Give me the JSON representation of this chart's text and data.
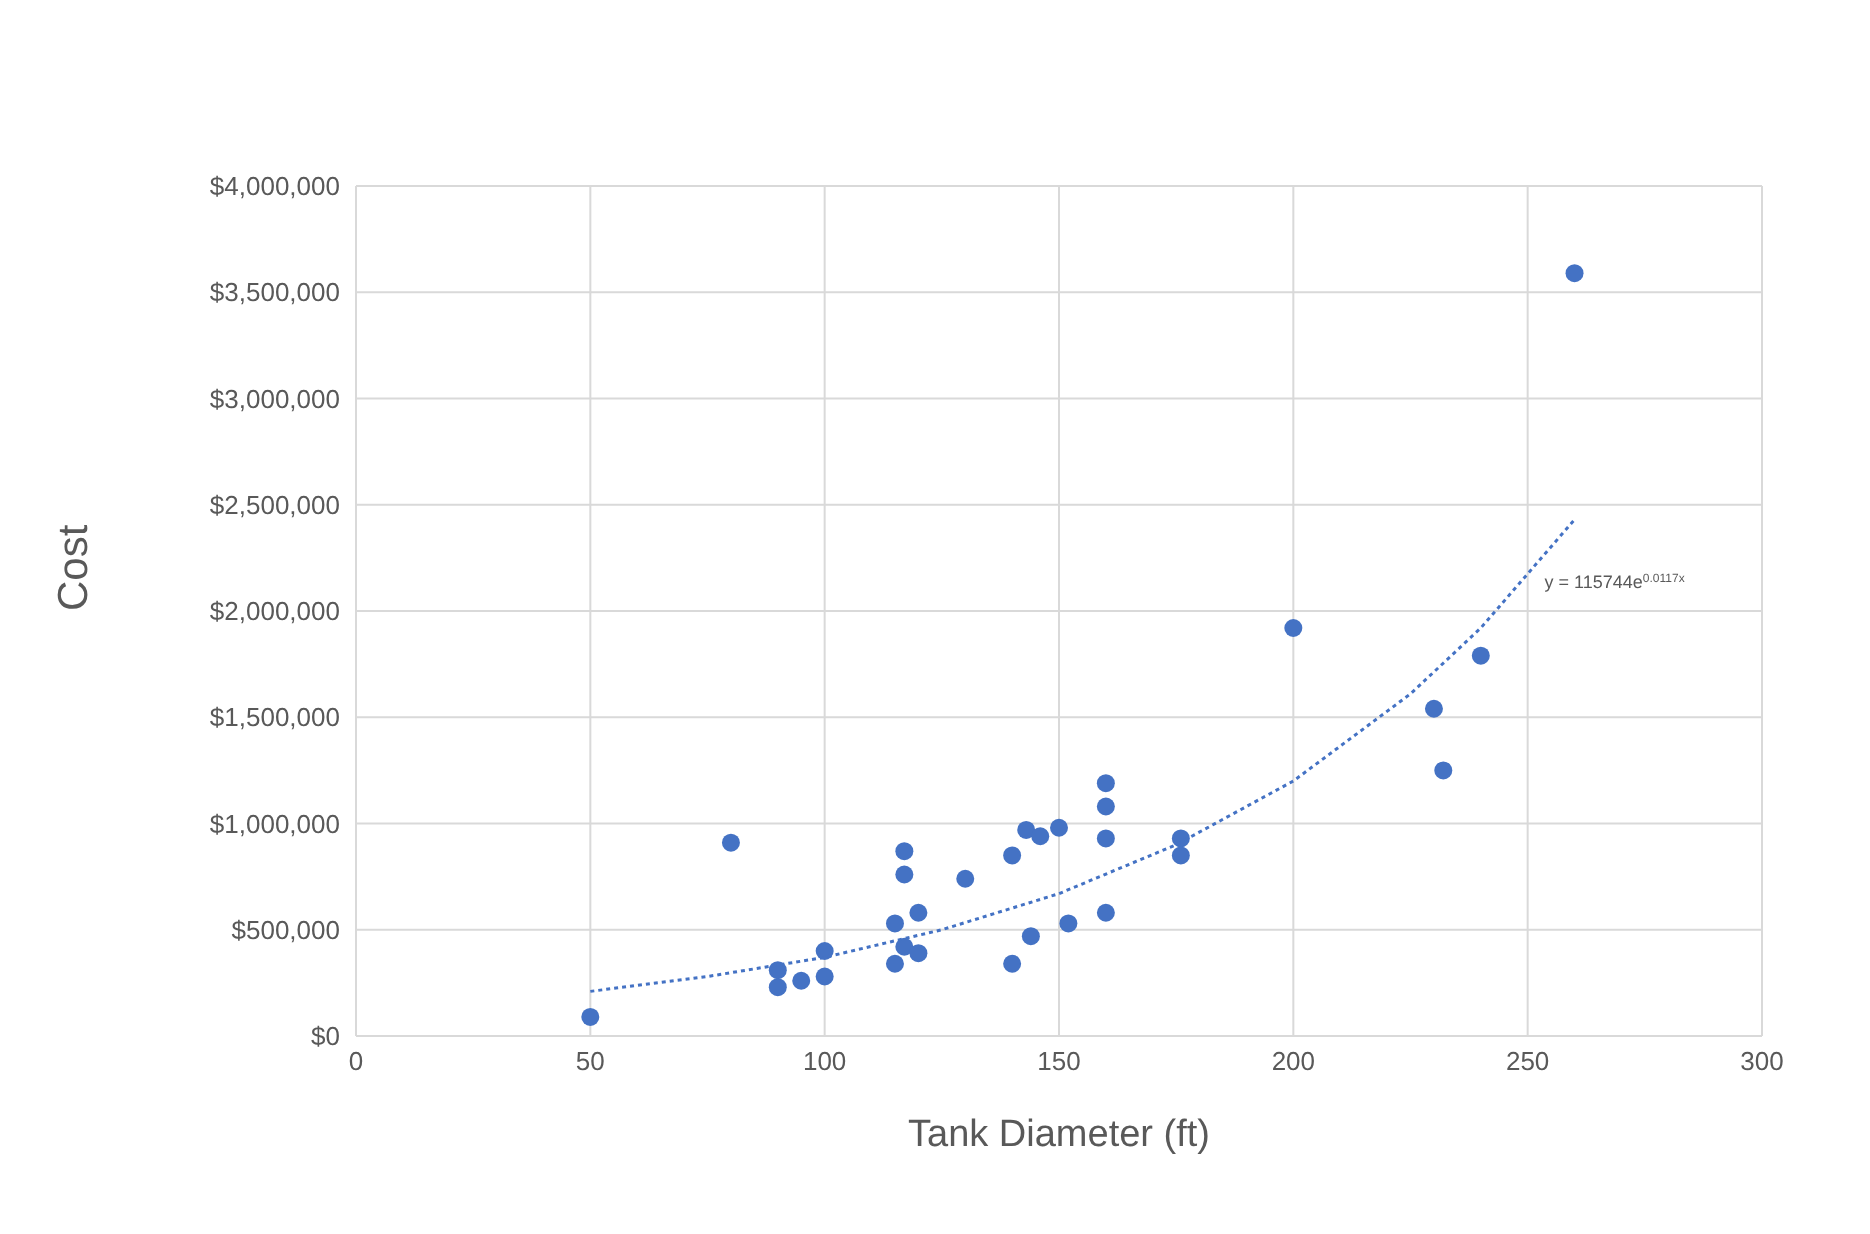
{
  "chart_data": {
    "type": "scatter",
    "xlabel": "Tank Diameter (ft)",
    "ylabel": "Cost",
    "xlim": [
      0,
      300
    ],
    "xticks": [
      0,
      50,
      100,
      150,
      200,
      250,
      300
    ],
    "ylim": [
      0,
      4000000
    ],
    "yticks": [
      {
        "value": 0,
        "label": "$0"
      },
      {
        "value": 500000,
        "label": "$500,000"
      },
      {
        "value": 1000000,
        "label": "$1,000,000"
      },
      {
        "value": 1500000,
        "label": "$1,500,000"
      },
      {
        "value": 2000000,
        "label": "$2,000,000"
      },
      {
        "value": 2500000,
        "label": "$2,500,000"
      },
      {
        "value": 3000000,
        "label": "$3,000,000"
      },
      {
        "value": 3500000,
        "label": "$3,500,000"
      },
      {
        "value": 4000000,
        "label": "$4,000,000"
      }
    ],
    "grid": true,
    "marker": "circle",
    "series": [
      {
        "color": "#4472c4",
        "x": [
          50,
          80,
          90,
          90,
          95,
          100,
          100,
          115,
          115,
          117,
          117,
          117,
          120,
          120,
          130,
          140,
          140,
          143,
          146,
          144,
          150,
          152,
          160,
          160,
          160,
          160,
          176,
          176,
          200,
          230,
          232,
          240,
          260
        ],
        "values": [
          90000,
          910000,
          310000,
          230000,
          260000,
          400000,
          280000,
          530000,
          340000,
          870000,
          760000,
          420000,
          390000,
          580000,
          740000,
          850000,
          340000,
          970000,
          940000,
          470000,
          980000,
          530000,
          1190000,
          1080000,
          930000,
          580000,
          930000,
          850000,
          1920000,
          1540000,
          1250000,
          1790000,
          3590000
        ]
      },
      {
        "type": "line",
        "color": "#4472c4",
        "line_style": "dotted",
        "marker": "none",
        "x": [
          50,
          75,
          100,
          125,
          150,
          175,
          200,
          225,
          240,
          260
        ],
        "values": [
          210000,
          280000,
          370000,
          500000,
          670000,
          900000,
          1200000,
          1610000,
          1920000,
          2430000
        ]
      }
    ],
    "annotations": [
      "y = 115744e$^{0.0117x}$"
    ]
  }
}
